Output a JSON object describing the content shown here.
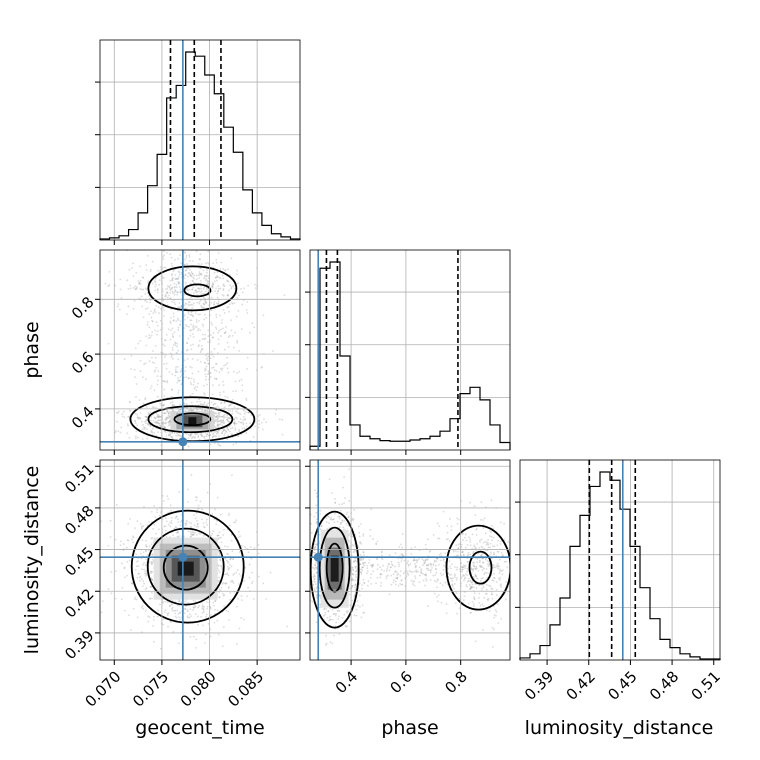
{
  "chart_data": {
    "type": "corner",
    "parameters": [
      "geocent_time",
      "phase",
      "luminosity_distance"
    ],
    "truths": {
      "geocent_time": 0.0772,
      "phase": 0.28,
      "luminosity_distance": 0.4445
    },
    "truth_color": "#4682b4",
    "grid": true,
    "axes": {
      "geocent_time": {
        "xlabel": "geocent_time",
        "range": [
          0.0685,
          0.0895
        ],
        "ticks": [
          0.07,
          0.075,
          0.08,
          0.085
        ],
        "tick_labels": [
          "0.070",
          "0.075",
          "0.080",
          "0.085"
        ]
      },
      "phase": {
        "ylabel": "phase",
        "xlabel": "phase",
        "range": [
          0.25,
          0.98
        ],
        "ticks": [
          0.4,
          0.6,
          0.8
        ],
        "tick_labels": [
          "0.4",
          "0.6",
          "0.8"
        ]
      },
      "luminosity_distance": {
        "ylabel": "luminosity_distance",
        "xlabel": "luminosity_distance",
        "range": [
          0.3705,
          0.5145
        ],
        "ticks": [
          0.39,
          0.42,
          0.45,
          0.48,
          0.51
        ],
        "tick_labels": [
          "0.39",
          "0.42",
          "0.45",
          "0.48",
          "0.51"
        ]
      }
    },
    "histograms": {
      "geocent_time": {
        "bin_edges": [
          0.0685,
          0.0695,
          0.0705,
          0.0715,
          0.0725,
          0.0735,
          0.0745,
          0.0755,
          0.0765,
          0.0775,
          0.0785,
          0.0795,
          0.0805,
          0.0815,
          0.0825,
          0.0835,
          0.0845,
          0.0855,
          0.0865,
          0.0875,
          0.0885,
          0.0895
        ],
        "counts": [
          1,
          2,
          4,
          10,
          26,
          52,
          82,
          136,
          148,
          180,
          176,
          158,
          140,
          108,
          84,
          48,
          26,
          14,
          6,
          3,
          1
        ],
        "quantiles": [
          0.0759,
          0.0784,
          0.0812
        ]
      },
      "phase": {
        "bin_edges": [
          0.25,
          0.2865,
          0.323,
          0.3595,
          0.396,
          0.4325,
          0.469,
          0.5055,
          0.542,
          0.5785,
          0.615,
          0.6515,
          0.688,
          0.7245,
          0.761,
          0.7975,
          0.834,
          0.8705,
          0.907,
          0.9435,
          0.98
        ],
        "counts": [
          6,
          290,
          300,
          150,
          40,
          22,
          18,
          15,
          14,
          14,
          16,
          18,
          22,
          30,
          50,
          90,
          100,
          80,
          40,
          12
        ],
        "quantiles": [
          0.31,
          0.35,
          0.79
        ]
      },
      "luminosity_distance": {
        "bin_edges": [
          0.3705,
          0.3777,
          0.3849,
          0.3921,
          0.3993,
          0.4065,
          0.4137,
          0.4209,
          0.4281,
          0.4353,
          0.4425,
          0.4497,
          0.4569,
          0.4641,
          0.4713,
          0.4785,
          0.4857,
          0.4929,
          0.5001,
          0.5073,
          0.5145
        ],
        "counts": [
          2,
          6,
          14,
          34,
          60,
          110,
          140,
          168,
          182,
          174,
          146,
          110,
          70,
          40,
          20,
          12,
          6,
          3,
          1,
          1
        ],
        "quantiles": [
          0.4204,
          0.4365,
          0.4535
        ]
      }
    },
    "scatter_panels": [
      {
        "x": "geocent_time",
        "y": "phase",
        "density_mode_x": 0.0782,
        "density_mode_y": 0.355
      },
      {
        "x": "geocent_time",
        "y": "luminosity_distance",
        "density_mode_x": 0.0775,
        "density_mode_y": 0.437
      },
      {
        "x": "phase",
        "y": "luminosity_distance",
        "density_mode_x": 0.34,
        "density_mode_y": 0.437
      }
    ]
  }
}
